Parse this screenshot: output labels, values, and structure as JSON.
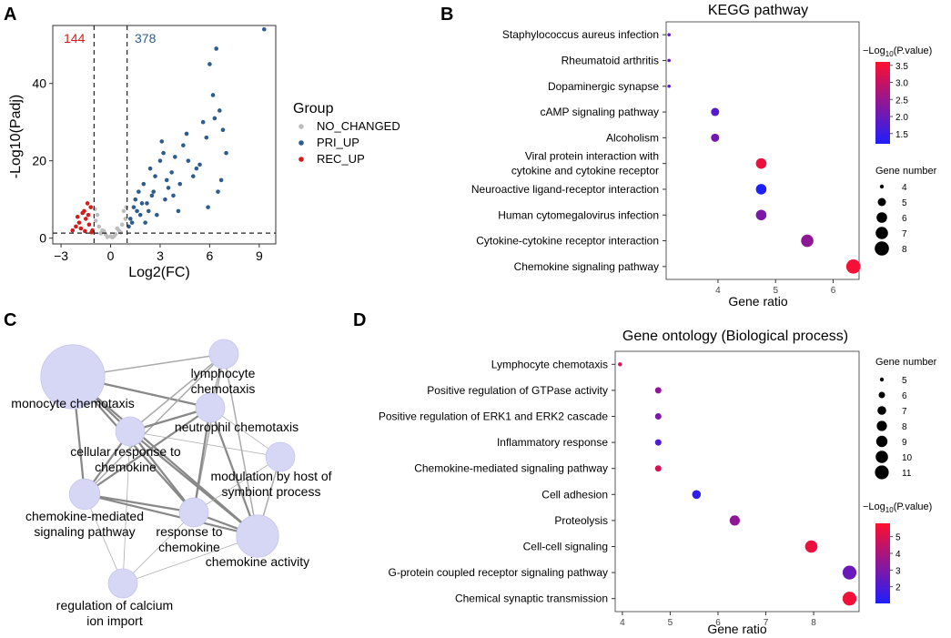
{
  "panel_labels": [
    "A",
    "B",
    "C",
    "D"
  ],
  "chart_data": [
    {
      "panel": "A",
      "type": "scatter",
      "xlabel": "Log2(FC)",
      "ylabel": "-Log10(Padj)",
      "xlim": [
        -3.5,
        10
      ],
      "ylim": [
        -1.5,
        55
      ],
      "xticks": [
        -3,
        0,
        3,
        6,
        9
      ],
      "xtick_labels": [
        "−3",
        "0",
        "3",
        "6",
        "9"
      ],
      "yticks": [
        0,
        20,
        40
      ],
      "ytick_labels": [
        "0",
        "20",
        "40"
      ],
      "vlines": [
        -1,
        1
      ],
      "hline": 1.3,
      "count_down": "144",
      "count_up": "378",
      "legend": {
        "title": "Group",
        "items": [
          {
            "label": "NO_CHANGED",
            "color": "#bdbdbd"
          },
          {
            "label": "PRI_UP",
            "color": "#2e5c8e"
          },
          {
            "label": "REC_UP",
            "color": "#d41c1c"
          }
        ]
      },
      "series": [
        {
          "name": "NO_CHANGED",
          "color": "#bdbdbd",
          "points": [
            [
              -0.9,
              4.5
            ],
            [
              -0.7,
              3
            ],
            [
              -0.5,
              2
            ],
            [
              -0.3,
              1
            ],
            [
              0,
              0.5
            ],
            [
              0.3,
              1
            ],
            [
              0.5,
              2
            ],
            [
              0.7,
              3.5
            ],
            [
              0.9,
              5
            ],
            [
              -0.8,
              6
            ],
            [
              0.8,
              7
            ],
            [
              -0.6,
              1.2
            ],
            [
              0.6,
              1.5
            ],
            [
              -0.2,
              0.3
            ],
            [
              0.2,
              0.4
            ],
            [
              0.95,
              8
            ],
            [
              -0.95,
              7.5
            ],
            [
              0.4,
              2.5
            ],
            [
              -0.4,
              1.8
            ],
            [
              0.1,
              0.2
            ]
          ]
        },
        {
          "name": "PRI_UP",
          "color": "#2e5c8e",
          "points": [
            [
              1.1,
              3
            ],
            [
              1.2,
              5
            ],
            [
              1.4,
              8
            ],
            [
              1.5,
              10
            ],
            [
              1.7,
              12
            ],
            [
              1.8,
              6
            ],
            [
              2.0,
              14
            ],
            [
              2.2,
              9
            ],
            [
              2.4,
              18
            ],
            [
              2.5,
              11
            ],
            [
              2.7,
              16
            ],
            [
              3.0,
              20
            ],
            [
              3.2,
              22
            ],
            [
              3.1,
              25
            ],
            [
              3.5,
              13
            ],
            [
              3.7,
              17
            ],
            [
              3.9,
              21
            ],
            [
              4.1,
              7
            ],
            [
              4.4,
              24
            ],
            [
              4.7,
              20
            ],
            [
              5.0,
              16
            ],
            [
              5.2,
              18
            ],
            [
              5.6,
              30
            ],
            [
              5.8,
              26
            ],
            [
              6.0,
              45
            ],
            [
              6.2,
              37
            ],
            [
              6.4,
              49
            ],
            [
              6.6,
              33
            ],
            [
              6.8,
              28
            ],
            [
              7.0,
              22
            ],
            [
              6.5,
              12
            ],
            [
              5.9,
              8
            ],
            [
              2.1,
              4
            ],
            [
              2.8,
              6
            ],
            [
              3.3,
              10
            ],
            [
              9.3,
              54
            ],
            [
              1.3,
              4
            ],
            [
              1.6,
              7
            ],
            [
              1.9,
              9
            ],
            [
              2.3,
              7
            ],
            [
              2.6,
              12
            ],
            [
              3.4,
              15
            ],
            [
              3.8,
              11
            ],
            [
              4.2,
              14
            ],
            [
              4.6,
              27
            ],
            [
              5.4,
              19
            ],
            [
              6.3,
              31
            ],
            [
              6.7,
              15
            ]
          ]
        },
        {
          "name": "REC_UP",
          "color": "#d41c1c",
          "points": [
            [
              -1.1,
              2
            ],
            [
              -1.3,
              3.5
            ],
            [
              -1.5,
              5
            ],
            [
              -1.7,
              6.5
            ],
            [
              -1.9,
              4
            ],
            [
              -2.1,
              3
            ],
            [
              -2.3,
              2
            ],
            [
              -1.2,
              8
            ],
            [
              -1.4,
              9
            ],
            [
              -1.6,
              7
            ],
            [
              -1.8,
              2.5
            ],
            [
              -2.0,
              5.5
            ],
            [
              -1.15,
              1.5
            ],
            [
              -1.35,
              6
            ],
            [
              -1.55,
              1.8
            ]
          ]
        }
      ]
    },
    {
      "panel": "B",
      "type": "scatter",
      "title": "KEGG pathway",
      "xlabel": "Gene ratio",
      "xlim": [
        3.1,
        6.45
      ],
      "xticks": [
        4,
        5,
        6
      ],
      "xtick_labels": [
        "4",
        "5",
        "6"
      ],
      "categories": [
        "Staphylococcus aureus infection",
        "Rheumatoid arthritis",
        "Dopaminergic synapse",
        "cAMP signaling pathway",
        "Alcoholism",
        "Viral protein interaction with|cytokine and cytokine receptor",
        "Neuroactive ligand-receptor interaction",
        "Human cytomegalovirus infection",
        "Cytokine-cytokine receptor interaction",
        "Chemokine signaling pathway"
      ],
      "x": [
        3.15,
        3.15,
        3.15,
        3.95,
        3.95,
        4.75,
        4.75,
        4.75,
        5.55,
        6.35
      ],
      "gene_number": [
        3,
        3,
        3,
        5,
        5,
        6,
        6,
        6,
        7,
        8
      ],
      "color_value": [
        1.9,
        1.9,
        1.7,
        1.8,
        2.1,
        3.4,
        1.2,
        2.2,
        2.4,
        3.5
      ],
      "color_legend": {
        "title": "−Log10(P.value)",
        "ticks": [
          1.5,
          2.0,
          2.5,
          3.0,
          3.5
        ],
        "tick_labels": [
          "1.5",
          "2.0",
          "2.5",
          "3.0",
          "3.5"
        ],
        "min": 1.2,
        "max": 3.6
      },
      "size_legend": {
        "title": "Gene number",
        "values": [
          4,
          5,
          6,
          7,
          8
        ],
        "labels": [
          "4",
          "5",
          "6",
          "7",
          "8"
        ]
      }
    },
    {
      "panel": "D",
      "type": "scatter",
      "title": "Gene ontology (Biological process)",
      "xlabel": "Gene ratio",
      "xlim": [
        3.85,
        8.95
      ],
      "xticks": [
        4,
        5,
        6,
        7,
        8
      ],
      "xtick_labels": [
        "4",
        "5",
        "6",
        "7",
        "8"
      ],
      "categories": [
        "Lymphocyte chemotaxis",
        "Positive regulation of GTPase activity",
        "Positive regulation of ERK1 and ERK2 cascade",
        "Inflammatory response",
        "Chemokine-mediated signaling pathway",
        "Cell adhesion",
        "Proteolysis",
        "Cell-cell signaling",
        "G-protein coupled receptor signaling pathway",
        "Chemical synaptic transmission"
      ],
      "x": [
        3.95,
        4.75,
        4.75,
        4.75,
        4.75,
        5.55,
        6.35,
        7.95,
        8.75,
        8.75
      ],
      "gene_number": [
        5,
        6,
        6,
        6,
        6,
        7,
        8,
        10,
        11,
        11
      ],
      "color_value": [
        5.0,
        3.4,
        3.0,
        2.0,
        4.9,
        1.4,
        3.4,
        5.4,
        2.6,
        5.5
      ],
      "color_legend": {
        "title": "−Log10(P.value)",
        "ticks": [
          2,
          3,
          4,
          5
        ],
        "tick_labels": [
          "2",
          "3",
          "4",
          "5"
        ],
        "min": 1.0,
        "max": 5.8
      },
      "size_legend": {
        "title": "Gene number",
        "values": [
          5,
          6,
          7,
          8,
          9,
          10,
          11
        ],
        "labels": [
          "5",
          "6",
          "7",
          "8",
          "9",
          "10",
          "11"
        ]
      }
    },
    {
      "panel": "C",
      "type": "network",
      "nodes": [
        {
          "id": "monocyte",
          "label": "monocyte chemotaxis",
          "weight": 2.2
        },
        {
          "id": "lymphocyte",
          "label": "lymphocyte|chemotaxis",
          "weight": 1.0
        },
        {
          "id": "neutrophil",
          "label": "neutrophil chemotaxis",
          "weight": 1.0
        },
        {
          "id": "cellular",
          "label": "cellular response to|chemokine",
          "weight": 1.0
        },
        {
          "id": "modulation",
          "label": "modulation by host of|symbiont process",
          "weight": 1.0
        },
        {
          "id": "cmsp",
          "label": "chemokine-mediated|signaling pathway",
          "weight": 1.05
        },
        {
          "id": "response",
          "label": "response to|chemokine",
          "weight": 1.0
        },
        {
          "id": "activity",
          "label": "chemokine activity",
          "weight": 1.45
        },
        {
          "id": "calcium",
          "label": "regulation of calcium|ion import",
          "weight": 1.0
        }
      ],
      "edges": [
        {
          "source": "monocyte",
          "target": "lymphocyte",
          "weight": 2
        },
        {
          "source": "monocyte",
          "target": "neutrophil",
          "weight": 3
        },
        {
          "source": "monocyte",
          "target": "cellular",
          "weight": 3
        },
        {
          "source": "monocyte",
          "target": "cmsp",
          "weight": 3
        },
        {
          "source": "monocyte",
          "target": "response",
          "weight": 3
        },
        {
          "source": "monocyte",
          "target": "activity",
          "weight": 3
        },
        {
          "source": "lymphocyte",
          "target": "neutrophil",
          "weight": 2
        },
        {
          "source": "lymphocyte",
          "target": "cellular",
          "weight": 2
        },
        {
          "source": "lymphocyte",
          "target": "cmsp",
          "weight": 2
        },
        {
          "source": "lymphocyte",
          "target": "response",
          "weight": 2
        },
        {
          "source": "lymphocyte",
          "target": "activity",
          "weight": 2
        },
        {
          "source": "neutrophil",
          "target": "cellular",
          "weight": 3
        },
        {
          "source": "neutrophil",
          "target": "cmsp",
          "weight": 3
        },
        {
          "source": "neutrophil",
          "target": "response",
          "weight": 3
        },
        {
          "source": "neutrophil",
          "target": "activity",
          "weight": 3
        },
        {
          "source": "neutrophil",
          "target": "modulation",
          "weight": 1
        },
        {
          "source": "cellular",
          "target": "cmsp",
          "weight": 3
        },
        {
          "source": "cellular",
          "target": "response",
          "weight": 3
        },
        {
          "source": "cellular",
          "target": "activity",
          "weight": 3
        },
        {
          "source": "cellular",
          "target": "modulation",
          "weight": 1
        },
        {
          "source": "cellular",
          "target": "calcium",
          "weight": 1
        },
        {
          "source": "cmsp",
          "target": "response",
          "weight": 3
        },
        {
          "source": "cmsp",
          "target": "activity",
          "weight": 3
        },
        {
          "source": "cmsp",
          "target": "calcium",
          "weight": 1
        },
        {
          "source": "response",
          "target": "activity",
          "weight": 3
        },
        {
          "source": "response",
          "target": "modulation",
          "weight": 1
        },
        {
          "source": "response",
          "target": "calcium",
          "weight": 1
        },
        {
          "source": "activity",
          "target": "modulation",
          "weight": 2
        },
        {
          "source": "activity",
          "target": "calcium",
          "weight": 1
        }
      ]
    }
  ]
}
